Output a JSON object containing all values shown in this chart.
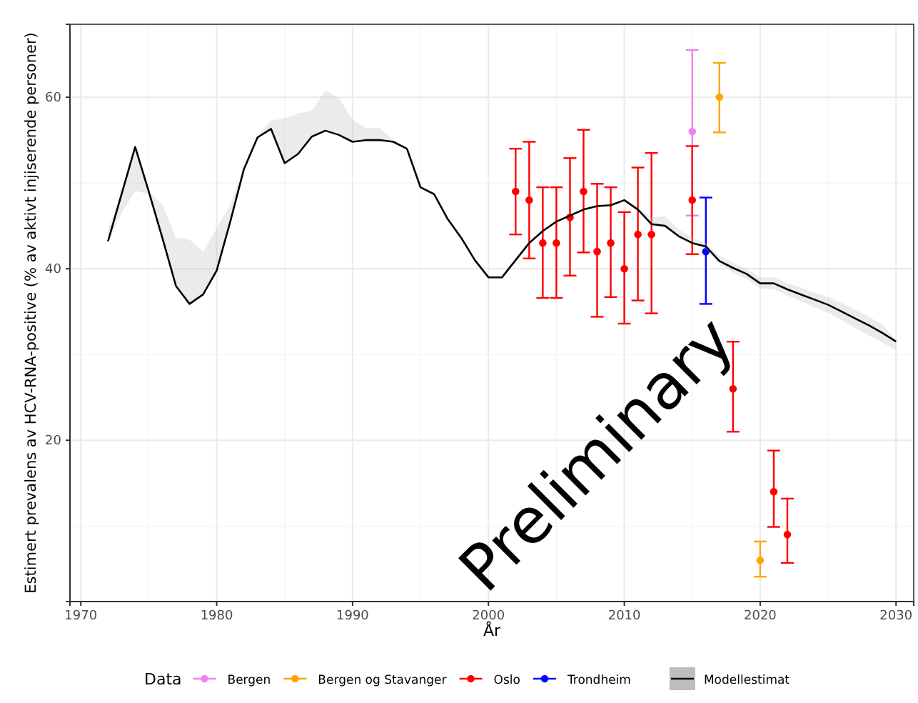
{
  "chart_data": {
    "type": "scatter",
    "xlabel": "År",
    "ylabel": "Estimert prevalens av HCV-RNA-positive (% av aktivt injiserende personer)",
    "legend_title": "Data",
    "legend": "bottom",
    "grid": true,
    "marker": "circle",
    "xlim": [
      1969.2,
      2031.3
    ],
    "xticks": [
      1970,
      1980,
      1990,
      2000,
      2010,
      2020,
      2030
    ],
    "ylim": [
      1.2,
      68.5
    ],
    "yticks": [
      20,
      40,
      60
    ],
    "annotations": [
      "Preliminary"
    ],
    "series": [
      {
        "name": "Bergen",
        "color": "#ee82ee",
        "x": [
          2015
        ],
        "values": [
          56
        ],
        "errors": [
          [
            46.2,
            65.5
          ]
        ]
      },
      {
        "name": "Bergen og Stavanger",
        "color": "#ffa500",
        "x": [
          2017,
          2020
        ],
        "values": [
          60,
          6
        ],
        "errors": [
          [
            55.9,
            64
          ],
          [
            4.1,
            8.2
          ]
        ]
      },
      {
        "name": "Oslo",
        "color": "#ff0000",
        "x": [
          2002,
          2003,
          2004,
          2005,
          2006,
          2007,
          2008,
          2009,
          2010,
          2011,
          2012,
          2015,
          2018,
          2021,
          2022
        ],
        "values": [
          49,
          48,
          43,
          43,
          46,
          49,
          42,
          43,
          40,
          44,
          44,
          48,
          26,
          14,
          9
        ],
        "errors": [
          [
            44,
            54
          ],
          [
            41.2,
            54.8
          ],
          [
            36.6,
            49.5
          ],
          [
            36.6,
            49.5
          ],
          [
            39.2,
            52.9
          ],
          [
            41.9,
            56.2
          ],
          [
            34.4,
            49.9
          ],
          [
            36.7,
            49.5
          ],
          [
            33.6,
            46.6
          ],
          [
            36.3,
            51.8
          ],
          [
            34.8,
            53.5
          ],
          [
            41.7,
            54.3
          ],
          [
            21,
            31.5
          ],
          [
            9.9,
            18.8
          ],
          [
            5.7,
            13.2
          ]
        ]
      },
      {
        "name": "Trondheim",
        "color": "#0000ff",
        "x": [
          2016
        ],
        "values": [
          42
        ],
        "errors": [
          [
            35.9,
            48.3
          ]
        ]
      },
      {
        "name": "Modellestimat",
        "type": "line",
        "color": "#000000",
        "marker": "none",
        "x": [
          1972,
          1973,
          1974,
          1975,
          1976,
          1977,
          1978,
          1979,
          1980,
          1981,
          1982,
          1983,
          1984,
          1985,
          1986,
          1987,
          1988,
          1989,
          1990,
          1991,
          1992,
          1993,
          1994,
          1995,
          1996,
          1997,
          1998,
          1999,
          2000,
          2001,
          2002,
          2003,
          2004,
          2005,
          2006,
          2007,
          2008,
          2009,
          2010,
          2011,
          2012,
          2013,
          2014,
          2015,
          2016,
          2017,
          2018,
          2019,
          2020,
          2021,
          2022,
          2023,
          2024,
          2025,
          2026,
          2027,
          2028,
          2029,
          2030
        ],
        "values": [
          43.2,
          48.7,
          54.2,
          49,
          43.6,
          38,
          35.9,
          37,
          39.8,
          45.5,
          51.6,
          55.3,
          56.3,
          52.3,
          53.4,
          55.4,
          56.1,
          55.6,
          54.8,
          55,
          55,
          54.8,
          54,
          49.5,
          48.7,
          45.8,
          43.6,
          41,
          39,
          39,
          41,
          43,
          44.4,
          45.5,
          46.2,
          46.9,
          47.3,
          47.4,
          48,
          46.9,
          45.2,
          45,
          43.8,
          43,
          42.6,
          40.9,
          40.1,
          39.4,
          38.3,
          38.3,
          37.6,
          37,
          36.4,
          35.8,
          35,
          34.2,
          33.4,
          32.5,
          31.5
        ],
        "lower": [
          43.2,
          46.5,
          49.1,
          48.7,
          43.6,
          38,
          35.9,
          37,
          39.8,
          45.5,
          51.6,
          55.3,
          56.3,
          52.3,
          53.4,
          55.4,
          56.1,
          55.6,
          54.8,
          55,
          55,
          54.8,
          54,
          49.5,
          48.7,
          45.8,
          43.6,
          41,
          39,
          39,
          41,
          43,
          44.4,
          45.5,
          46.2,
          46.9,
          47.3,
          47.4,
          48,
          46.9,
          45.2,
          45,
          43.8,
          43,
          42.3,
          40.5,
          39.6,
          38.8,
          37.7,
          37.6,
          36.9,
          36.2,
          35.5,
          34.9,
          34,
          33.1,
          32.2,
          31.4,
          30.5
        ],
        "upper": [
          44.5,
          49,
          54.2,
          49,
          47.5,
          43.6,
          43.4,
          42,
          44.7,
          47.5,
          51.6,
          55.5,
          57.3,
          57.5,
          58.1,
          58.4,
          60.8,
          59.9,
          57.4,
          56.4,
          56.4,
          55,
          54,
          49.5,
          48.7,
          45.8,
          43.6,
          41,
          39,
          39,
          41,
          43,
          44.4,
          45.5,
          46.2,
          46.9,
          47.3,
          47.4,
          48,
          47.1,
          46,
          46.1,
          44.6,
          43.6,
          43,
          41.5,
          40.7,
          40,
          39,
          39,
          38.3,
          37.8,
          37.2,
          36.7,
          36,
          35.2,
          34.4,
          33.5,
          31.7
        ]
      }
    ]
  }
}
